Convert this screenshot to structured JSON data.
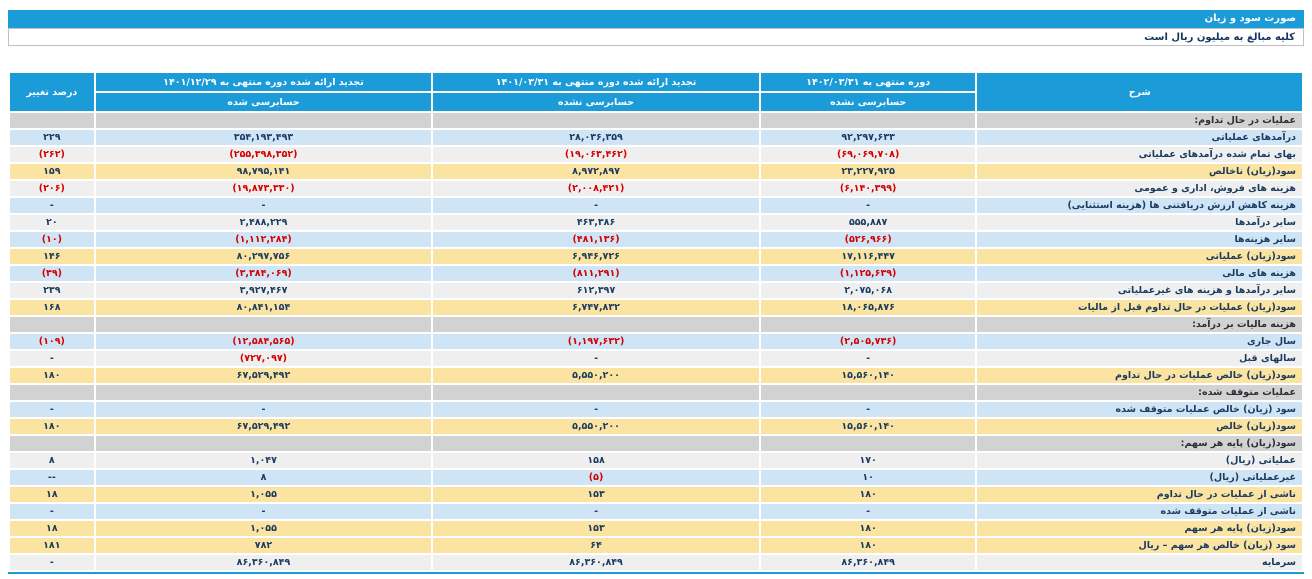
{
  "title_bar": {
    "title": "صورت سود و زیان"
  },
  "subtitle": "کلیه مبالغ به میلیون ریال است",
  "colors": {
    "header_blue": "#1b9cd8",
    "row_blue": "#cfe5f5",
    "row_gray": "#efefef",
    "row_yellow": "#fbe3a2",
    "row_section": "#d2d2d2",
    "text_navy": "#1b3c60",
    "negative_red": "#d40000"
  },
  "table": {
    "headers": {
      "description": "شرح",
      "period_current": "دوره منتهی به ۱۴۰۲/۰۳/۳۱",
      "period_current_sub": "حسابرسی نشده",
      "period_q1_prior": "تجدید ارائه شده دوره منتهی به ۱۴۰۱/۰۳/۳۱",
      "period_q1_prior_sub": "حسابرسی نشده",
      "period_year_prior": "تجدید ارائه شده دوره منتهی به ۱۴۰۱/۱۲/۲۹",
      "period_year_prior_sub": "حسابرسی شده",
      "pct_change": "درصد تغییر"
    },
    "rows": [
      {
        "label": "عملیات در حال تداوم:",
        "type": "section",
        "cur": "",
        "mid": "",
        "prev": "",
        "pct": ""
      },
      {
        "label": "درآمدهای عملیاتی",
        "type": "blue",
        "cur": "۹۲,۲۹۷,۶۳۳",
        "mid": "۲۸,۰۳۶,۳۵۹",
        "prev": "۳۵۴,۱۹۳,۴۹۳",
        "pct": "۲۲۹"
      },
      {
        "label": "بهای تمام شده درآمدهای عملیاتی",
        "type": "white",
        "cur": "(۶۹,۰۶۹,۷۰۸)",
        "mid": "(۱۹,۰۶۳,۴۶۲)",
        "prev": "(۲۵۵,۳۹۸,۳۵۲)",
        "pct": "(۲۶۲)"
      },
      {
        "label": "سود(زیان) ناخالص",
        "type": "yellow",
        "cur": "۲۳,۲۲۷,۹۲۵",
        "mid": "۸,۹۷۲,۸۹۷",
        "prev": "۹۸,۷۹۵,۱۴۱",
        "pct": "۱۵۹"
      },
      {
        "label": "هزینه های فروش، اداری و عمومی",
        "type": "white",
        "cur": "(۶,۱۴۰,۳۹۹)",
        "mid": "(۲,۰۰۸,۴۲۱)",
        "prev": "(۱۹,۸۷۳,۳۳۰)",
        "pct": "(۲۰۶)"
      },
      {
        "label": "هزینه کاهش ارزش دریافتنی ها (هزینه استثنایی)",
        "type": "blue",
        "cur": "-",
        "mid": "-",
        "prev": "-",
        "pct": "-"
      },
      {
        "label": "سایر درآمدها",
        "type": "white",
        "cur": "۵۵۵,۸۸۷",
        "mid": "۴۶۳,۳۸۶",
        "prev": "۲,۴۸۸,۲۲۹",
        "pct": "۲۰"
      },
      {
        "label": "سایر هزینه‌ها",
        "type": "blue",
        "cur": "(۵۲۶,۹۶۶)",
        "mid": "(۴۸۱,۱۳۶)",
        "prev": "(۱,۱۱۲,۲۸۴)",
        "pct": "(۱۰)"
      },
      {
        "label": "سود(زیان) عملیاتی",
        "type": "yellow",
        "cur": "۱۷,۱۱۶,۴۴۷",
        "mid": "۶,۹۴۶,۷۲۶",
        "prev": "۸۰,۲۹۷,۷۵۶",
        "pct": "۱۴۶"
      },
      {
        "label": "هزینه های مالی",
        "type": "blue",
        "cur": "(۱,۱۲۵,۶۳۹)",
        "mid": "(۸۱۱,۲۹۱)",
        "prev": "(۳,۳۸۴,۰۶۹)",
        "pct": "(۳۹)"
      },
      {
        "label": "سایر درآمدها و هزینه های غیرعملیاتی",
        "type": "white",
        "cur": "۲,۰۷۵,۰۶۸",
        "mid": "۶۱۲,۳۹۷",
        "prev": "۳,۹۲۷,۴۶۷",
        "pct": "۲۳۹"
      },
      {
        "label": "سود(زیان) عملیات در حال تداوم قبل از مالیات",
        "type": "yellow",
        "cur": "۱۸,۰۶۵,۸۷۶",
        "mid": "۶,۷۴۷,۸۳۲",
        "prev": "۸۰,۸۴۱,۱۵۴",
        "pct": "۱۶۸"
      },
      {
        "label": "هزینه مالیات بر درآمد:",
        "type": "section",
        "cur": "",
        "mid": "",
        "prev": "",
        "pct": ""
      },
      {
        "label": "سال جاری",
        "type": "blue",
        "cur": "(۲,۵۰۵,۷۳۶)",
        "mid": "(۱,۱۹۷,۶۳۲)",
        "prev": "(۱۲,۵۸۴,۵۶۵)",
        "pct": "(۱۰۹)"
      },
      {
        "label": "سالهای قبل",
        "type": "white",
        "cur": "-",
        "mid": "-",
        "prev": "(۷۲۷,۰۹۷)",
        "pct": "-"
      },
      {
        "label": "سود(زیان) خالص عملیات در حال تداوم",
        "type": "yellow",
        "cur": "۱۵,۵۶۰,۱۴۰",
        "mid": "۵,۵۵۰,۲۰۰",
        "prev": "۶۷,۵۲۹,۴۹۲",
        "pct": "۱۸۰"
      },
      {
        "label": "عملیات متوقف شده:",
        "type": "section",
        "cur": "",
        "mid": "",
        "prev": "",
        "pct": ""
      },
      {
        "label": "سود (زیان) خالص عملیات متوقف شده",
        "type": "blue",
        "cur": "-",
        "mid": "-",
        "prev": "-",
        "pct": "-"
      },
      {
        "label": "سود(زیان) خالص",
        "type": "yellow",
        "cur": "۱۵,۵۶۰,۱۴۰",
        "mid": "۵,۵۵۰,۲۰۰",
        "prev": "۶۷,۵۲۹,۴۹۲",
        "pct": "۱۸۰"
      },
      {
        "label": "سود(زیان) پایه هر سهم:",
        "type": "section",
        "cur": "",
        "mid": "",
        "prev": "",
        "pct": ""
      },
      {
        "label": "عملیاتی (ریال)",
        "type": "white",
        "cur": "۱۷۰",
        "mid": "۱۵۸",
        "prev": "۱,۰۴۷",
        "pct": "۸"
      },
      {
        "label": "غیرعملیاتی (ریال)",
        "type": "blue",
        "cur": "۱۰",
        "mid": "(۵)",
        "prev": "۸",
        "pct": "--"
      },
      {
        "label": "ناشی از عملیات در حال تداوم",
        "type": "yellow",
        "cur": "۱۸۰",
        "mid": "۱۵۳",
        "prev": "۱,۰۵۵",
        "pct": "۱۸"
      },
      {
        "label": "ناشی از عملیات متوقف شده",
        "type": "blue",
        "cur": "-",
        "mid": "-",
        "prev": "-",
        "pct": "-"
      },
      {
        "label": "سود(زیان) پایه هر سهم",
        "type": "yellow",
        "cur": "۱۸۰",
        "mid": "۱۵۳",
        "prev": "۱,۰۵۵",
        "pct": "۱۸"
      },
      {
        "label": "سود (زیان) خالص هر سهم – ریال",
        "type": "yellow",
        "cur": "۱۸۰",
        "mid": "۶۴",
        "prev": "۷۸۲",
        "pct": "۱۸۱"
      },
      {
        "label": "سرمایه",
        "type": "white",
        "cur": "۸۶,۳۶۰,۸۴۹",
        "mid": "۸۶,۳۶۰,۸۴۹",
        "prev": "۸۶,۳۶۰,۸۴۹",
        "pct": "-"
      }
    ]
  }
}
